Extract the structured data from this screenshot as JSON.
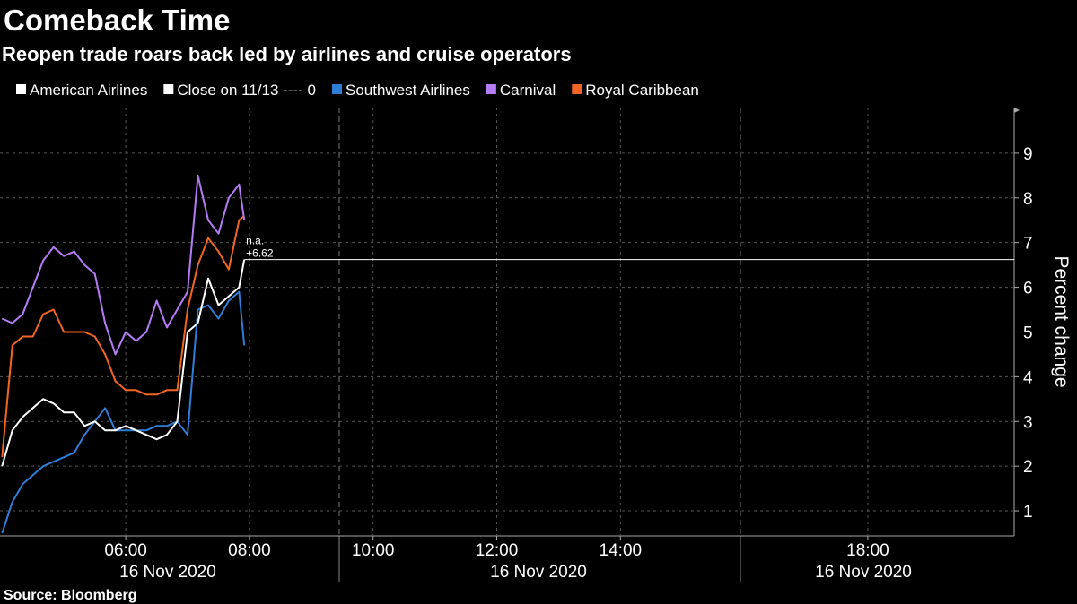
{
  "chart_data": {
    "type": "line",
    "title": "Comeback Time",
    "subtitle": "Reopen trade roars back led by airlines and cruise operators",
    "source": "Source: Bloomberg",
    "y_label": "Percent change",
    "x": [
      "04:00",
      "04:10",
      "04:20",
      "04:30",
      "04:40",
      "04:50",
      "05:00",
      "05:10",
      "05:20",
      "05:30",
      "05:40",
      "05:50",
      "06:00",
      "06:10",
      "06:20",
      "06:30",
      "06:40",
      "06:50",
      "07:00",
      "07:10",
      "07:20",
      "07:30",
      "07:40",
      "07:50",
      "07:55"
    ],
    "xlim": [
      "03:58",
      "20:22"
    ],
    "xticks": [
      "06:00",
      "08:00",
      "10:00",
      "12:00",
      "14:00",
      "18:00"
    ],
    "x_date_labels": [
      "16 Nov 2020",
      "16 Nov 2020",
      "16 Nov 2020"
    ],
    "ylim": [
      0.44,
      10.02
    ],
    "yticks": [
      1,
      2,
      3,
      4,
      5,
      6,
      7,
      8,
      9
    ],
    "grid": true,
    "series": [
      {
        "name": "American Airlines",
        "color": "#ffffff",
        "values": [
          2.0,
          2.8,
          3.1,
          3.3,
          3.5,
          3.4,
          3.2,
          3.2,
          2.9,
          3.0,
          2.8,
          2.8,
          2.9,
          2.8,
          2.7,
          2.6,
          2.7,
          3.0,
          5.0,
          5.2,
          6.2,
          5.6,
          5.8,
          6.0,
          6.62
        ]
      },
      {
        "name": "Southwest Airlines",
        "color": "#2f7ed8",
        "values": [
          0.5,
          1.2,
          1.6,
          1.8,
          2.0,
          2.1,
          2.2,
          2.3,
          2.7,
          3.0,
          3.3,
          2.8,
          2.8,
          2.8,
          2.8,
          2.9,
          2.9,
          3.0,
          2.7,
          5.5,
          5.6,
          5.3,
          5.7,
          5.9,
          4.7
        ]
      },
      {
        "name": "Carnival",
        "color": "#b67cf5",
        "values": [
          5.3,
          5.2,
          5.4,
          6.0,
          6.6,
          6.9,
          6.7,
          6.8,
          6.5,
          6.3,
          5.2,
          4.5,
          5.0,
          4.8,
          5.0,
          5.7,
          5.1,
          5.5,
          5.9,
          8.5,
          7.5,
          7.2,
          8.0,
          8.3,
          7.5
        ]
      },
      {
        "name": "Royal Caribbean",
        "color": "#f26522",
        "values": [
          2.2,
          4.7,
          4.9,
          4.9,
          5.4,
          5.5,
          5.0,
          5.0,
          5.0,
          4.9,
          4.5,
          3.9,
          3.7,
          3.7,
          3.6,
          3.6,
          3.7,
          3.7,
          5.5,
          6.5,
          7.1,
          6.8,
          6.4,
          7.5,
          7.6
        ]
      }
    ],
    "reference_line": {
      "name": "Close on 11/13 ---- 0",
      "color": "#ffffff",
      "value": 0
    },
    "last_value": {
      "value": 6.62,
      "label": "+6.62",
      "note": "n.a.",
      "color": "#ffffff"
    }
  }
}
